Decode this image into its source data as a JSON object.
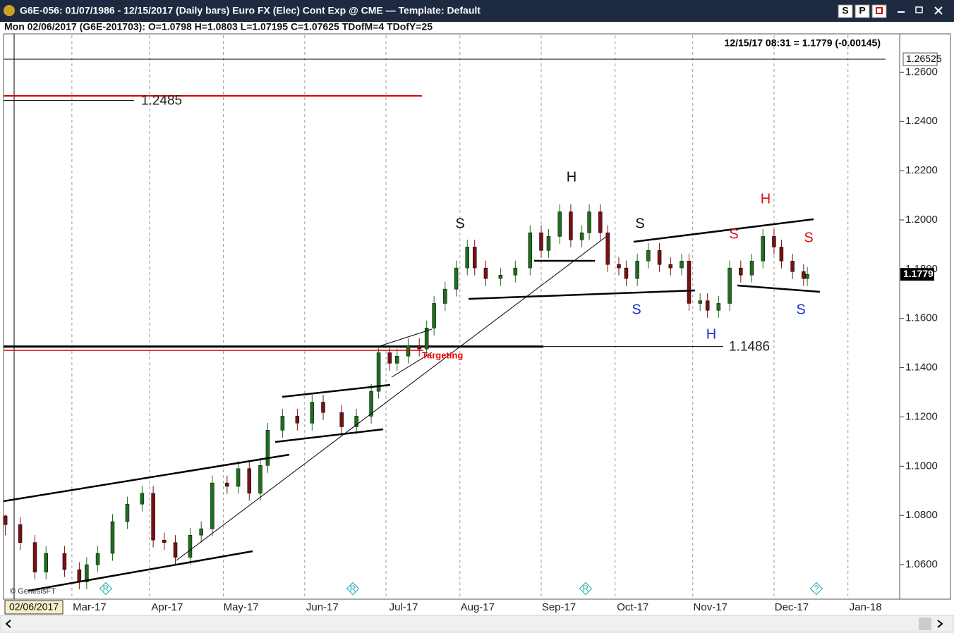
{
  "window": {
    "title": "G6E-056:  01/07/1986 - 12/15/2017  (Daily bars)   Euro FX (Elec) Cont Exp @ CME  —  Template: Default",
    "buttons": [
      "S",
      "P"
    ]
  },
  "header": {
    "bar_info": "Mon  02/06/2017 (G6E-201703):  O=1.0798  H=1.0803  L=1.07195  C=1.07625  TDofM=4  TDofY=25"
  },
  "chart_data": {
    "type": "candlestick",
    "x": [
      0,
      4,
      8,
      11,
      16,
      20,
      22,
      25,
      29,
      33,
      37,
      40,
      43,
      46,
      50,
      53,
      56,
      60,
      63,
      66,
      69,
      71,
      75,
      79,
      83,
      86,
      91,
      95,
      99,
      101,
      104,
      106,
      109,
      112,
      114,
      116,
      119,
      122,
      125,
      127,
      130,
      134,
      138,
      142,
      145,
      147,
      150,
      153,
      156,
      158,
      161,
      163,
      166,
      168,
      171,
      174,
      177,
      180,
      183,
      185,
      188,
      190,
      193,
      196,
      199,
      202,
      205,
      208,
      210,
      213,
      216,
      217
    ],
    "open": [
      1.0798,
      1.0763,
      1.069,
      1.057,
      1.0646,
      1.058,
      1.053,
      1.06,
      1.0646,
      1.0775,
      1.0846,
      1.089,
      1.07,
      1.069,
      1.063,
      1.072,
      1.0746,
      1.0932,
      1.0918,
      1.099,
      1.089,
      1.1003,
      1.1146,
      1.1203,
      1.1175,
      1.126,
      1.1218,
      1.116,
      1.1203,
      1.1304,
      1.1461,
      1.1418,
      1.1447,
      1.149,
      1.1476,
      1.1561,
      1.1661,
      1.1719,
      1.1805,
      1.189,
      1.1805,
      1.1762,
      1.1776,
      1.1805,
      1.1948,
      1.1876,
      1.1933,
      1.2033,
      1.1919,
      1.1948,
      1.2033,
      1.1948,
      1.1819,
      1.1805,
      1.1762,
      1.1833,
      1.1876,
      1.1819,
      1.1805,
      1.1833,
      1.1661,
      1.1672,
      1.1633,
      1.1661,
      1.1805,
      1.1776,
      1.1833,
      1.1933,
      1.189,
      1.1833,
      1.179,
      1.1762
    ],
    "high": [
      1.0803,
      1.0793,
      1.072,
      1.0676,
      1.0676,
      1.061,
      1.063,
      1.0676,
      1.0805,
      1.0876,
      1.092,
      1.092,
      1.073,
      1.072,
      1.075,
      1.0776,
      1.0962,
      1.0962,
      1.102,
      1.102,
      1.1033,
      1.1176,
      1.1233,
      1.1233,
      1.129,
      1.129,
      1.1248,
      1.1233,
      1.1334,
      1.1491,
      1.1491,
      1.1477,
      1.152,
      1.152,
      1.1591,
      1.1691,
      1.1749,
      1.1835,
      1.192,
      1.192,
      1.1835,
      1.1806,
      1.1835,
      1.1978,
      1.1978,
      1.1963,
      1.2063,
      1.2063,
      1.1978,
      1.2063,
      1.2063,
      1.1978,
      1.1849,
      1.1835,
      1.1863,
      1.1906,
      1.1906,
      1.1849,
      1.1863,
      1.1863,
      1.1702,
      1.1702,
      1.1691,
      1.1835,
      1.1835,
      1.1863,
      1.1963,
      1.1963,
      1.192,
      1.1863,
      1.182,
      1.1809
    ],
    "low": [
      1.07195,
      1.066,
      1.054,
      1.054,
      1.055,
      1.05,
      1.05,
      1.057,
      1.0616,
      1.0745,
      1.0816,
      1.067,
      1.066,
      1.06,
      1.06,
      1.069,
      1.0716,
      1.0888,
      1.0888,
      1.086,
      1.086,
      1.0973,
      1.1116,
      1.1145,
      1.1145,
      1.1188,
      1.113,
      1.113,
      1.1173,
      1.1274,
      1.1388,
      1.1388,
      1.1417,
      1.1446,
      1.1446,
      1.1531,
      1.1631,
      1.1689,
      1.1775,
      1.1775,
      1.1732,
      1.1732,
      1.1746,
      1.1775,
      1.1846,
      1.1846,
      1.1903,
      1.1889,
      1.1889,
      1.1918,
      1.1918,
      1.1789,
      1.1775,
      1.1732,
      1.1732,
      1.1803,
      1.1789,
      1.1775,
      1.1775,
      1.1631,
      1.1631,
      1.1603,
      1.1603,
      1.1631,
      1.1746,
      1.1746,
      1.1803,
      1.186,
      1.1803,
      1.176,
      1.1732,
      1.1732
    ],
    "close": [
      1.07625,
      1.069,
      1.057,
      1.0646,
      1.058,
      1.053,
      1.06,
      1.0646,
      1.0775,
      1.0846,
      1.089,
      1.07,
      1.069,
      1.063,
      1.072,
      1.0746,
      1.0932,
      1.0918,
      1.099,
      1.089,
      1.1003,
      1.1146,
      1.1203,
      1.1175,
      1.126,
      1.1218,
      1.116,
      1.1203,
      1.1304,
      1.1461,
      1.1418,
      1.1447,
      1.149,
      1.1476,
      1.1561,
      1.1661,
      1.1719,
      1.1805,
      1.189,
      1.1805,
      1.1762,
      1.1776,
      1.1805,
      1.1948,
      1.1876,
      1.1933,
      1.2033,
      1.1919,
      1.1948,
      1.2033,
      1.1948,
      1.1819,
      1.1805,
      1.1762,
      1.1833,
      1.1876,
      1.1819,
      1.1805,
      1.1833,
      1.1661,
      1.1672,
      1.1633,
      1.1661,
      1.1805,
      1.1776,
      1.1833,
      1.1933,
      1.189,
      1.1833,
      1.179,
      1.1762,
      1.1779
    ],
    "up_color": "#1f6e1f",
    "down_color": "#7a1010",
    "xlim": [
      -0.5,
      242
    ],
    "ylim": [
      1.046,
      1.275
    ],
    "xticks": [
      {
        "value": 18,
        "label": "Mar-17"
      },
      {
        "value": 39,
        "label": "Apr-17"
      },
      {
        "value": 59,
        "label": "May-17"
      },
      {
        "value": 81,
        "label": "Jun-17"
      },
      {
        "value": 103,
        "label": "Jul-17"
      },
      {
        "value": 123,
        "label": "Aug-17"
      },
      {
        "value": 145,
        "label": "Sep-17"
      },
      {
        "value": 165,
        "label": "Oct-17"
      },
      {
        "value": 186,
        "label": "Nov-17"
      },
      {
        "value": 208,
        "label": "Dec-17"
      },
      {
        "value": 228,
        "label": "Jan-18"
      }
    ],
    "yticks": [
      {
        "value": 1.06,
        "label": "1.0600"
      },
      {
        "value": 1.08,
        "label": "1.0800"
      },
      {
        "value": 1.1,
        "label": "1.1000"
      },
      {
        "value": 1.12,
        "label": "1.1200"
      },
      {
        "value": 1.14,
        "label": "1.1400"
      },
      {
        "value": 1.16,
        "label": "1.1600"
      },
      {
        "value": 1.18,
        "label": "1.1800"
      },
      {
        "value": 1.2,
        "label": "1.2000"
      },
      {
        "value": 1.22,
        "label": "1.2200"
      },
      {
        "value": 1.24,
        "label": "1.2400"
      },
      {
        "value": 1.26,
        "label": "1.2600"
      }
    ],
    "grid": true,
    "start_label": "02/06/2017",
    "quote": "12/15/17 08:31 = 1.1779 (-0.00145)",
    "last_price": 1.1779,
    "top_level": 1.26525,
    "levels": [
      1.2485,
      1.1486
    ],
    "annotations": [
      "Targeting",
      "© GenesisFT"
    ],
    "pattern_labels": [
      "S",
      "H",
      "S",
      "S",
      "H",
      "S",
      "H",
      "S",
      "S"
    ],
    "markers": [
      "R",
      "R",
      "R",
      "?"
    ]
  }
}
